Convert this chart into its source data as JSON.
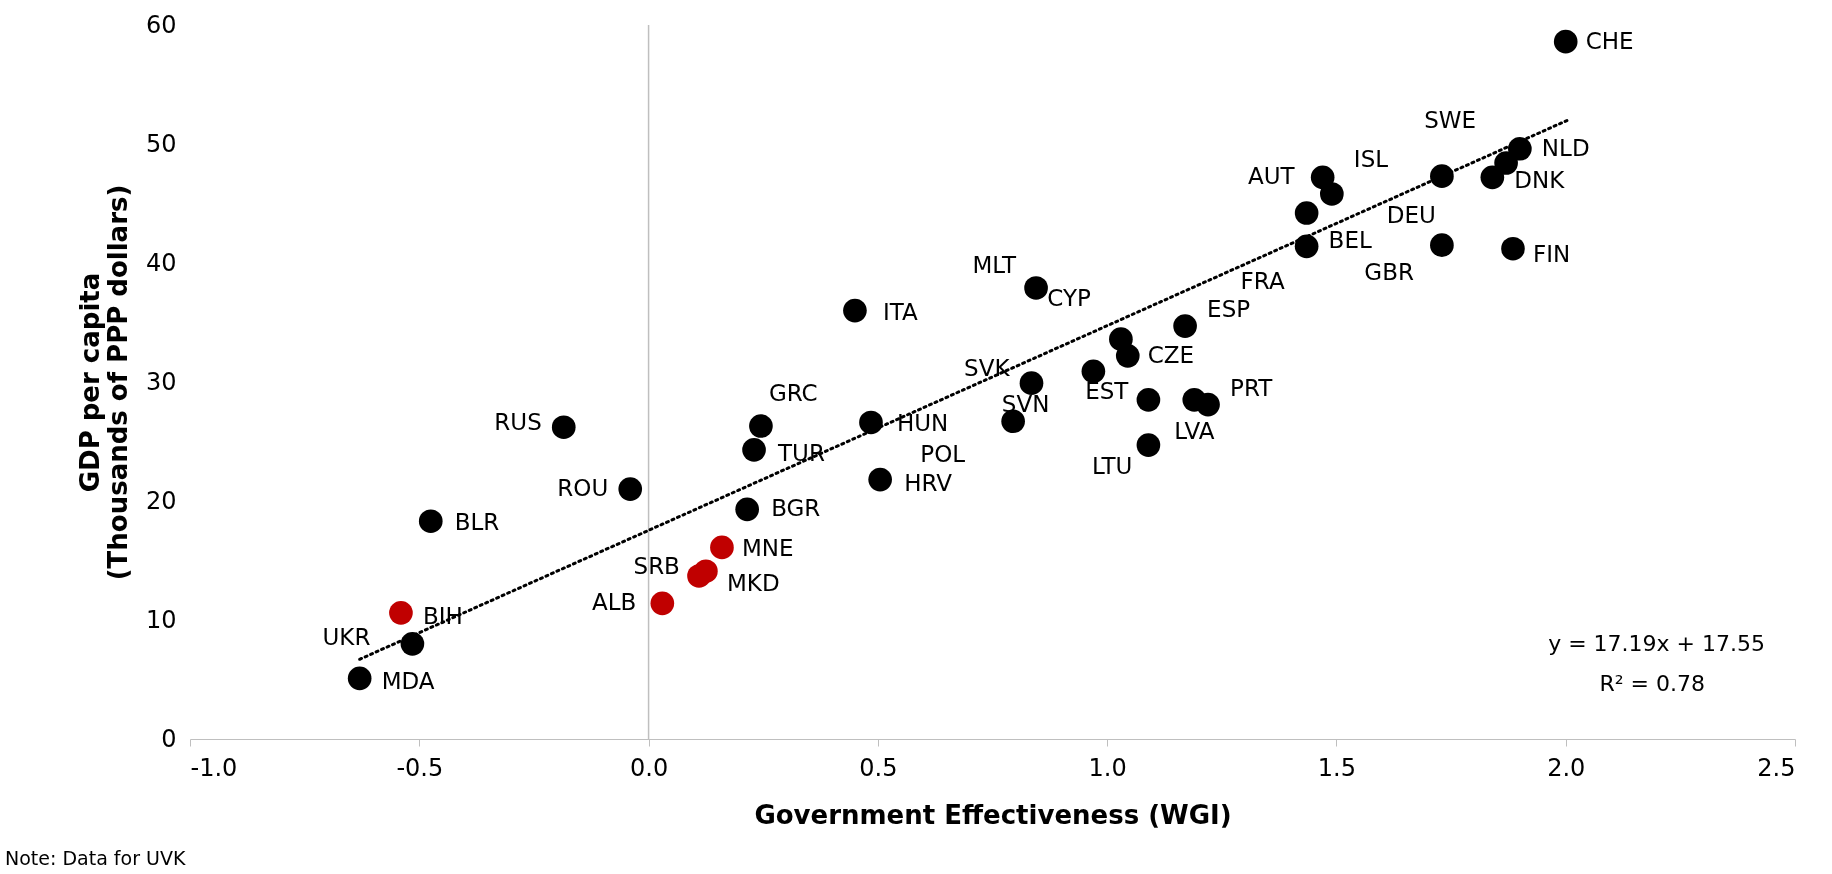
{
  "chart_data": {
    "type": "scatter",
    "xlabel": "Government Effectiveness (WGI)",
    "ylabel": "GDP per capita\n(Thousands of PPP dollars)",
    "xlim": [
      -1.0,
      2.5
    ],
    "xticks": [
      {
        "value": -1,
        "label": "-1.0"
      },
      {
        "value": -0.5,
        "label": "-0.5"
      },
      {
        "value": 0,
        "label": "0.0"
      },
      {
        "value": 0.5,
        "label": "0.5"
      },
      {
        "value": 1,
        "label": "1.0"
      },
      {
        "value": 1.5,
        "label": "1.5"
      },
      {
        "value": 2,
        "label": "2.0"
      },
      {
        "value": 2.5,
        "label": "2.5"
      }
    ],
    "ylim": [
      0,
      60
    ],
    "yticks": [
      0,
      10,
      20,
      30,
      40,
      50,
      60
    ],
    "grid": false,
    "marker": "circle",
    "ref_lines": [
      {
        "axis": "x",
        "value": 0,
        "color": "#bfbfbf"
      }
    ],
    "series": [
      {
        "color": "#000000",
        "x": [
          2.0,
          1.9,
          1.87,
          1.73,
          1.84,
          1.73,
          1.885,
          1.49,
          1.47,
          1.435,
          1.435,
          1.17,
          1.03,
          1.045,
          0.835,
          0.97,
          1.09,
          1.09,
          1.22,
          1.19,
          0.845,
          0.45,
          0.795,
          0.485,
          0.505,
          0.245,
          0.23,
          0.215,
          -0.185,
          -0.04,
          -0.475,
          -0.515,
          -0.63
        ],
        "values": [
          58.6,
          49.6,
          48.4,
          47.3,
          47.2,
          41.5,
          41.2,
          45.8,
          47.2,
          44.2,
          41.4,
          34.7,
          33.6,
          32.2,
          29.9,
          30.9,
          28.5,
          24.7,
          28.1,
          28.5,
          37.9,
          36.0,
          26.7,
          26.6,
          21.8,
          26.3,
          24.3,
          19.3,
          26.2,
          21.0,
          18.3,
          8.0,
          5.1
        ]
      },
      {
        "color": "#c00000",
        "x": [
          0.16,
          0.125,
          0.11,
          0.03,
          -0.54
        ],
        "values": [
          16.1,
          14.1,
          13.7,
          11.4,
          10.6
        ]
      },
      {
        "type": "line",
        "color": "#000000",
        "line_style": "dotted",
        "marker": "none",
        "x": [
          -0.63,
          2.01
        ],
        "values": [
          6.7,
          52.1
        ]
      }
    ],
    "annotations": [
      {
        "text": "CHE",
        "x": 2.0,
        "y": 58.6
      },
      {
        "text": "NLD",
        "x": 1.9,
        "y": 49.6
      },
      {
        "text": "SWE",
        "x": 1.87,
        "y": 48.4
      },
      {
        "text": "DEU",
        "x": 1.73,
        "y": 47.3
      },
      {
        "text": "DNK",
        "x": 1.84,
        "y": 47.2
      },
      {
        "text": "GBR",
        "x": 1.73,
        "y": 41.5
      },
      {
        "text": "FIN",
        "x": 1.885,
        "y": 41.2
      },
      {
        "text": "ISL",
        "x": 1.49,
        "y": 45.8
      },
      {
        "text": "AUT",
        "x": 1.47,
        "y": 47.2
      },
      {
        "text": "BEL",
        "x": 1.435,
        "y": 44.2
      },
      {
        "text": "FRA",
        "x": 1.435,
        "y": 41.4
      },
      {
        "text": "ESP",
        "x": 1.17,
        "y": 34.7
      },
      {
        "text": "CYP",
        "x": 1.03,
        "y": 33.6
      },
      {
        "text": "CZE",
        "x": 1.045,
        "y": 32.2
      },
      {
        "text": "SVK",
        "x": 0.835,
        "y": 29.9
      },
      {
        "text": "SVN",
        "x": 0.97,
        "y": 30.9
      },
      {
        "text": "EST",
        "x": 1.09,
        "y": 28.5
      },
      {
        "text": "LTU",
        "x": 1.09,
        "y": 24.7
      },
      {
        "text": "PRT",
        "x": 1.22,
        "y": 28.1
      },
      {
        "text": "LVA",
        "x": 1.19,
        "y": 28.5
      },
      {
        "text": "MLT",
        "x": 0.845,
        "y": 37.9
      },
      {
        "text": "ITA",
        "x": 0.45,
        "y": 36.0
      },
      {
        "text": "POL",
        "x": 0.795,
        "y": 26.7
      },
      {
        "text": "HUN",
        "x": 0.485,
        "y": 26.6
      },
      {
        "text": "HRV",
        "x": 0.505,
        "y": 21.8
      },
      {
        "text": "GRC",
        "x": 0.245,
        "y": 26.3
      },
      {
        "text": "TUR",
        "x": 0.23,
        "y": 24.3
      },
      {
        "text": "BGR",
        "x": 0.215,
        "y": 19.3
      },
      {
        "text": "RUS",
        "x": -0.185,
        "y": 26.2
      },
      {
        "text": "ROU",
        "x": -0.04,
        "y": 21.0
      },
      {
        "text": "BLR",
        "x": -0.475,
        "y": 18.3
      },
      {
        "text": "UKR",
        "x": -0.515,
        "y": 8.0
      },
      {
        "text": "MDA",
        "x": -0.63,
        "y": 5.1
      },
      {
        "text": "MNE",
        "x": 0.16,
        "y": 16.1
      },
      {
        "text": "SRB",
        "x": 0.125,
        "y": 14.1
      },
      {
        "text": "MKD",
        "x": 0.11,
        "y": 13.7
      },
      {
        "text": "ALB",
        "x": 0.03,
        "y": 11.4
      },
      {
        "text": "BIH",
        "x": -0.54,
        "y": 10.6
      },
      "y = 17.19x + 17.55",
      "R² = 0.78",
      "Note: Data for UVK"
    ]
  }
}
